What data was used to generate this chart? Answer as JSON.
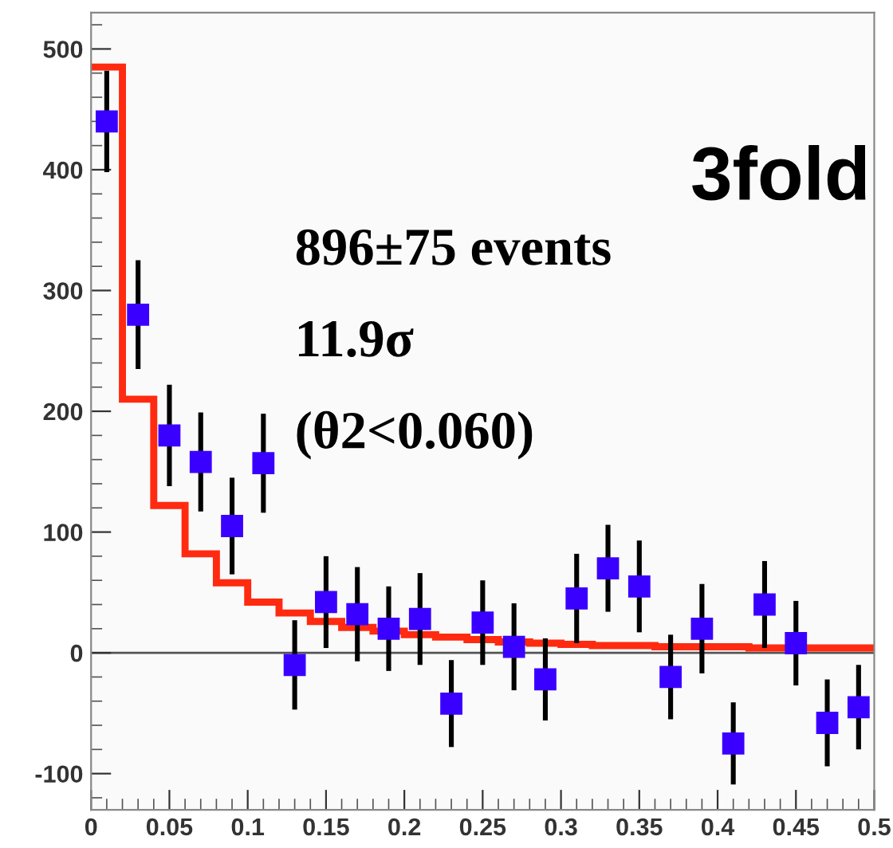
{
  "chart_data": {
    "type": "scatter",
    "xlim": [
      0,
      0.5
    ],
    "ylim": [
      -130,
      530
    ],
    "xticks": [
      0,
      0.05,
      0.1,
      0.15,
      0.2,
      0.25,
      0.3,
      0.35,
      0.4,
      0.45,
      0.5
    ],
    "yticks": [
      -100,
      0,
      100,
      200,
      300,
      400,
      500
    ],
    "grid": false,
    "legend": false,
    "marker": "square",
    "ref_lines": [
      {
        "axis": "y",
        "value": 0,
        "color": "#555555"
      }
    ],
    "annotations": [
      "3fold",
      "896±75 events",
      "11.9σ",
      "(θ2<0.060)"
    ],
    "series": [
      {
        "type": "histogram",
        "color": "#ff2a10",
        "bins": [
          0,
          0.02,
          0.04,
          0.06,
          0.08,
          0.1,
          0.12,
          0.14,
          0.16,
          0.18,
          0.2,
          0.22,
          0.24,
          0.26,
          0.28,
          0.3,
          0.32,
          0.34,
          0.36,
          0.38,
          0.4,
          0.42,
          0.44,
          0.46,
          0.48,
          0.5
        ],
        "values": [
          485,
          210,
          122,
          82,
          58,
          42,
          33,
          26,
          21,
          18,
          15,
          13,
          11,
          9,
          8,
          7,
          6,
          6,
          5,
          5,
          5,
          4,
          4,
          4,
          4
        ]
      },
      {
        "color": "#3a00ff",
        "x": [
          0.01,
          0.03,
          0.05,
          0.07,
          0.09,
          0.11,
          0.13,
          0.15,
          0.17,
          0.19,
          0.21,
          0.23,
          0.25,
          0.27,
          0.29,
          0.31,
          0.33,
          0.35,
          0.37,
          0.39,
          0.41,
          0.43,
          0.45,
          0.47,
          0.49
        ],
        "values": [
          440,
          280,
          180,
          158,
          105,
          157,
          -10,
          42,
          32,
          20,
          28,
          -42,
          25,
          5,
          -22,
          45,
          70,
          55,
          -20,
          20,
          -75,
          40,
          8,
          -58,
          -45
        ],
        "errors": [
          42,
          45,
          42,
          41,
          40,
          41,
          37,
          38,
          39,
          35,
          38,
          36,
          35,
          36,
          34,
          37,
          36,
          38,
          35,
          37,
          34,
          36,
          35,
          36,
          35
        ]
      }
    ]
  }
}
